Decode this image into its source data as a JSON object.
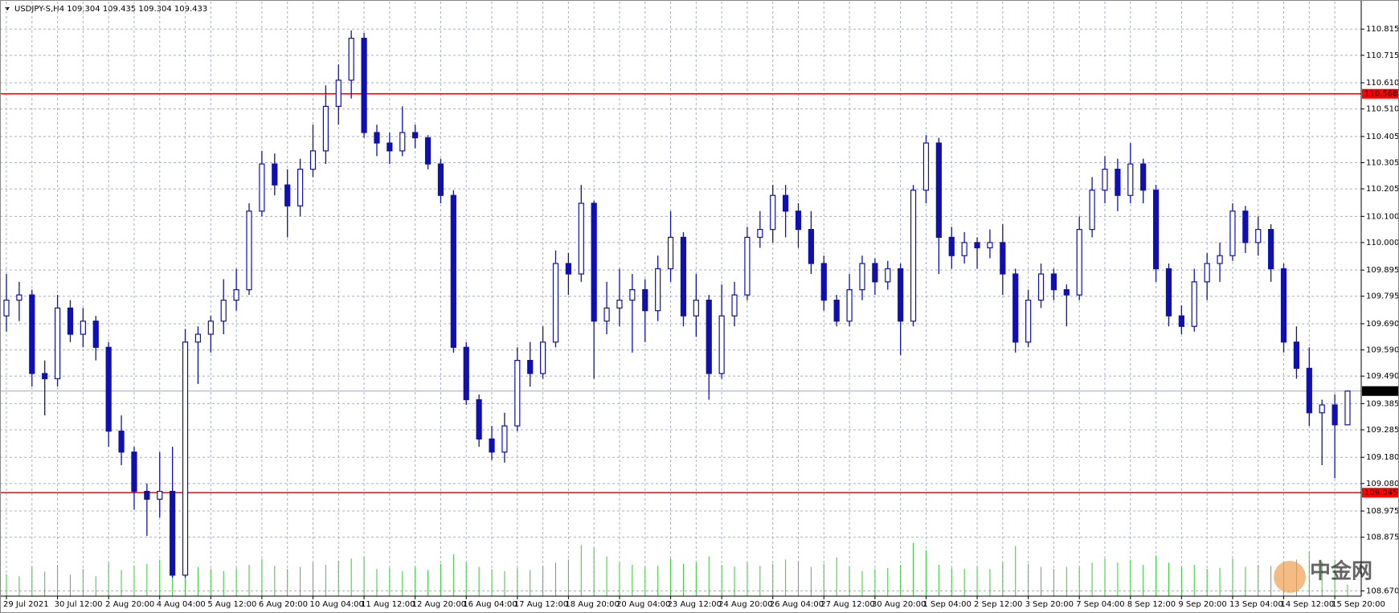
{
  "chart_data": {
    "type": "candlestick",
    "title": "USDJPY-S,H4",
    "categories": [
      "29 Jul 2021",
      null,
      null,
      null,
      "30 Jul 12:00",
      null,
      null,
      null,
      "2 Aug 20:00",
      null,
      null,
      null,
      "4 Aug 04:00",
      null,
      null,
      null,
      "5 Aug 12:00",
      null,
      null,
      null,
      "6 Aug 20:00",
      null,
      null,
      null,
      "10 Aug 04:00",
      null,
      null,
      null,
      "11 Aug 12:00",
      null,
      null,
      null,
      "12 Aug 20:00",
      null,
      null,
      null,
      "16 Aug 04:00",
      null,
      null,
      null,
      "17 Aug 12:00",
      null,
      null,
      null,
      "18 Aug 20:00",
      null,
      null,
      null,
      "20 Aug 04:00",
      null,
      null,
      null,
      "23 Aug 12:00",
      null,
      null,
      null,
      "24 Aug 20:00",
      null,
      null,
      null,
      "26 Aug 04:00",
      null,
      null,
      null,
      "27 Aug 12:00",
      null,
      null,
      null,
      "30 Aug 20:00",
      null,
      null,
      null,
      "1 Sep 04:00",
      null,
      null,
      null,
      "2 Sep 12:00",
      null,
      null,
      null,
      "3 Sep 20:00",
      null,
      null,
      null,
      "7 Sep 04:00",
      null,
      null,
      null,
      "8 Sep 12:00",
      null,
      null,
      null,
      "9 Sep 20:00",
      null,
      null,
      null,
      "13 Sep 04:00",
      null,
      null,
      null,
      "14 Sep 12:00",
      null,
      null,
      null,
      "15 Sep 20:00",
      null
    ],
    "candles": [
      [
        109.72,
        109.88,
        109.66,
        109.78
      ],
      [
        109.78,
        109.85,
        109.7,
        109.8
      ],
      [
        109.8,
        109.82,
        109.45,
        109.5
      ],
      [
        109.5,
        109.55,
        109.34,
        109.48
      ],
      [
        109.48,
        109.8,
        109.45,
        109.75
      ],
      [
        109.75,
        109.78,
        109.62,
        109.65
      ],
      [
        109.65,
        109.75,
        109.6,
        109.7
      ],
      [
        109.7,
        109.72,
        109.55,
        109.6
      ],
      [
        109.6,
        109.62,
        109.22,
        109.28
      ],
      [
        109.28,
        109.34,
        109.15,
        109.2
      ],
      [
        109.2,
        109.22,
        108.98,
        109.05
      ],
      [
        109.05,
        109.08,
        108.88,
        109.02
      ],
      [
        109.02,
        109.2,
        108.95,
        109.05
      ],
      [
        109.05,
        109.22,
        108.72,
        108.73
      ],
      [
        108.73,
        109.67,
        108.72,
        109.62
      ],
      [
        109.62,
        109.68,
        109.46,
        109.65
      ],
      [
        109.65,
        109.72,
        109.58,
        109.7
      ],
      [
        109.7,
        109.86,
        109.65,
        109.78
      ],
      [
        109.78,
        109.9,
        109.74,
        109.82
      ],
      [
        109.82,
        110.15,
        109.8,
        110.12
      ],
      [
        110.12,
        110.35,
        110.1,
        110.3
      ],
      [
        110.3,
        110.34,
        110.18,
        110.22
      ],
      [
        110.22,
        110.28,
        110.02,
        110.14
      ],
      [
        110.14,
        110.32,
        110.1,
        110.28
      ],
      [
        110.28,
        110.45,
        110.25,
        110.35
      ],
      [
        110.35,
        110.6,
        110.3,
        110.52
      ],
      [
        110.52,
        110.68,
        110.45,
        110.62
      ],
      [
        110.62,
        110.81,
        110.55,
        110.78
      ],
      [
        110.78,
        110.8,
        110.4,
        110.42
      ],
      [
        110.42,
        110.45,
        110.33,
        110.38
      ],
      [
        110.38,
        110.42,
        110.3,
        110.35
      ],
      [
        110.35,
        110.52,
        110.33,
        110.42
      ],
      [
        110.42,
        110.45,
        110.36,
        110.4
      ],
      [
        110.4,
        110.41,
        110.28,
        110.3
      ],
      [
        110.3,
        110.32,
        110.15,
        110.18
      ],
      [
        110.18,
        110.2,
        109.58,
        109.6
      ],
      [
        109.6,
        109.62,
        109.38,
        109.4
      ],
      [
        109.4,
        109.42,
        109.22,
        109.25
      ],
      [
        109.25,
        109.3,
        109.17,
        109.2
      ],
      [
        109.2,
        109.35,
        109.16,
        109.3
      ],
      [
        109.3,
        109.6,
        109.28,
        109.55
      ],
      [
        109.55,
        109.62,
        109.45,
        109.5
      ],
      [
        109.5,
        109.68,
        109.48,
        109.62
      ],
      [
        109.62,
        109.97,
        109.6,
        109.92
      ],
      [
        109.92,
        109.96,
        109.8,
        109.88
      ],
      [
        109.88,
        110.22,
        109.85,
        110.15
      ],
      [
        110.15,
        110.16,
        109.48,
        109.7
      ],
      [
        109.7,
        109.85,
        109.65,
        109.75
      ],
      [
        109.75,
        109.9,
        109.68,
        109.78
      ],
      [
        109.78,
        109.88,
        109.58,
        109.82
      ],
      [
        109.82,
        109.86,
        109.62,
        109.74
      ],
      [
        109.74,
        109.95,
        109.7,
        109.9
      ],
      [
        109.9,
        110.12,
        109.85,
        110.02
      ],
      [
        110.02,
        110.04,
        109.68,
        109.72
      ],
      [
        109.72,
        109.88,
        109.64,
        109.78
      ],
      [
        109.78,
        109.8,
        109.4,
        109.5
      ],
      [
        109.5,
        109.84,
        109.48,
        109.72
      ],
      [
        109.72,
        109.85,
        109.68,
        109.8
      ],
      [
        109.8,
        110.06,
        109.78,
        110.02
      ],
      [
        110.02,
        110.12,
        109.98,
        110.05
      ],
      [
        110.05,
        110.22,
        110.0,
        110.18
      ],
      [
        110.18,
        110.22,
        110.02,
        110.12
      ],
      [
        110.12,
        110.15,
        109.98,
        110.05
      ],
      [
        110.05,
        110.12,
        109.88,
        109.92
      ],
      [
        109.92,
        109.95,
        109.74,
        109.78
      ],
      [
        109.78,
        109.8,
        109.68,
        109.7
      ],
      [
        109.7,
        109.88,
        109.68,
        109.82
      ],
      [
        109.82,
        109.95,
        109.78,
        109.92
      ],
      [
        109.92,
        109.94,
        109.8,
        109.85
      ],
      [
        109.85,
        109.93,
        109.82,
        109.9
      ],
      [
        109.9,
        109.92,
        109.57,
        109.7
      ],
      [
        109.7,
        110.22,
        109.68,
        110.2
      ],
      [
        110.2,
        110.41,
        110.15,
        110.38
      ],
      [
        110.38,
        110.4,
        109.88,
        110.02
      ],
      [
        110.02,
        110.06,
        109.9,
        109.95
      ],
      [
        109.95,
        110.04,
        109.92,
        110.0
      ],
      [
        110.0,
        110.02,
        109.9,
        109.98
      ],
      [
        109.98,
        110.05,
        109.94,
        110.0
      ],
      [
        110.0,
        110.07,
        109.8,
        109.88
      ],
      [
        109.88,
        109.9,
        109.58,
        109.62
      ],
      [
        109.62,
        109.82,
        109.6,
        109.78
      ],
      [
        109.78,
        109.92,
        109.75,
        109.88
      ],
      [
        109.88,
        109.9,
        109.78,
        109.82
      ],
      [
        109.82,
        109.84,
        109.68,
        109.8
      ],
      [
        109.8,
        110.1,
        109.78,
        110.05
      ],
      [
        110.05,
        110.25,
        110.02,
        110.2
      ],
      [
        110.2,
        110.33,
        110.15,
        110.28
      ],
      [
        110.28,
        110.32,
        110.12,
        110.18
      ],
      [
        110.18,
        110.38,
        110.15,
        110.3
      ],
      [
        110.3,
        110.32,
        110.15,
        110.2
      ],
      [
        110.2,
        110.22,
        109.85,
        109.9
      ],
      [
        109.9,
        109.92,
        109.68,
        109.72
      ],
      [
        109.72,
        109.76,
        109.65,
        109.68
      ],
      [
        109.68,
        109.9,
        109.66,
        109.85
      ],
      [
        109.85,
        109.96,
        109.78,
        109.92
      ],
      [
        109.92,
        110.0,
        109.85,
        109.95
      ],
      [
        109.95,
        110.15,
        109.93,
        110.12
      ],
      [
        110.12,
        110.14,
        109.96,
        110.0
      ],
      [
        110.0,
        110.1,
        109.95,
        110.05
      ],
      [
        110.05,
        110.07,
        109.85,
        109.9
      ],
      [
        109.9,
        109.92,
        109.58,
        109.62
      ],
      [
        109.62,
        109.68,
        109.48,
        109.52
      ],
      [
        109.52,
        109.6,
        109.3,
        109.35
      ],
      [
        109.35,
        109.4,
        109.15,
        109.38
      ],
      [
        109.38,
        109.42,
        109.1,
        109.304
      ],
      [
        109.304,
        109.435,
        109.304,
        109.433
      ]
    ],
    "volumes": [
      420,
      380,
      560,
      470,
      600,
      410,
      520,
      380,
      640,
      500,
      580,
      620,
      700,
      820,
      880,
      560,
      520,
      480,
      540,
      600,
      710,
      580,
      520,
      560,
      640,
      600,
      680,
      720,
      760,
      520,
      540,
      480,
      560,
      500,
      620,
      800,
      640,
      560,
      520,
      480,
      540,
      500,
      580,
      640,
      700,
      980,
      920,
      760,
      640,
      600,
      560,
      580,
      720,
      620,
      640,
      760,
      600,
      560,
      640,
      580,
      620,
      700,
      660,
      560,
      620,
      740,
      560,
      480,
      520,
      540,
      600,
      1020,
      880,
      600,
      540,
      520,
      560,
      520,
      640,
      960,
      620,
      560,
      520,
      560,
      560,
      640,
      720,
      640,
      700,
      600,
      780,
      640,
      560,
      600,
      520,
      540,
      720,
      560,
      600,
      580,
      640,
      700,
      860,
      660,
      700,
      220
    ],
    "ylim": [
      108.65,
      110.92
    ],
    "yticks": [
      110.815,
      110.715,
      {
        "value": 110.61,
        "label": "110.610"
      },
      {
        "value": 110.51,
        "label": "110.510"
      },
      110.405,
      110.305,
      110.205,
      {
        "value": 110.1,
        "label": "110.100"
      },
      {
        "value": 110,
        "label": "110.000"
      },
      109.895,
      109.795,
      {
        "value": 109.69,
        "label": "109.690"
      },
      {
        "value": 109.59,
        "label": "109.590"
      },
      {
        "value": 109.49,
        "label": "109.490"
      },
      109.385,
      109.285,
      {
        "value": 109.18,
        "label": "109.180"
      },
      {
        "value": 109.08,
        "label": "109.080"
      },
      108.975,
      108.875,
      {
        "value": 108.67,
        "label": "108.670"
      }
    ],
    "levels": [
      {
        "value": 110.568,
        "color": "#ff0000"
      },
      {
        "value": 109.045,
        "color": "#ff0000"
      }
    ],
    "grid": true,
    "up_color": "#ffffff",
    "color": "#1010b0",
    "volume_color": "#33cc33",
    "watermark": "中金网"
  }
}
